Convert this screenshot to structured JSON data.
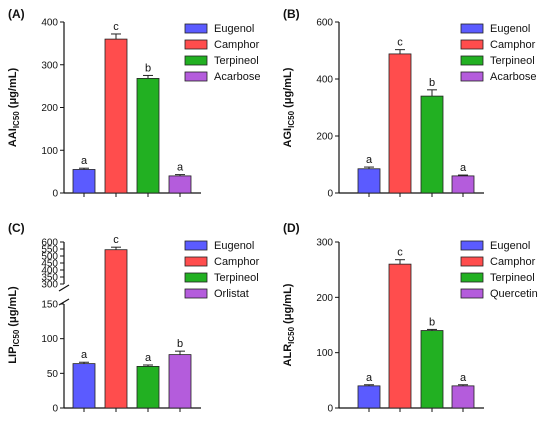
{
  "chart_data": [
    {
      "panel": "(A)",
      "type": "bar",
      "ylabel": "AAI",
      "ylabel_sub": "IC50",
      "ylabel_unit": " (μg/mL)",
      "categories": [
        "Eugenol",
        "Camphor",
        "Terpineol",
        "Acarbose"
      ],
      "values": [
        55,
        360,
        268,
        40
      ],
      "errors": [
        3,
        12,
        7,
        3
      ],
      "significance": [
        "a",
        "c",
        "b",
        "a"
      ],
      "colors": [
        "#5b5bff",
        "#ff4d4d",
        "#22b022",
        "#b45cdc"
      ],
      "ylim": [
        0,
        400
      ],
      "yticks": [
        "0",
        "100",
        "200",
        "300",
        "400"
      ],
      "legend": [
        "Eugenol",
        "Camphor",
        "Terpineol",
        "Acarbose"
      ]
    },
    {
      "panel": "(B)",
      "type": "bar",
      "ylabel": "AGI",
      "ylabel_sub": "IC50",
      "ylabel_unit": " (μg/mL)",
      "categories": [
        "Eugenol",
        "Camphor",
        "Terpineol",
        "Acarbose"
      ],
      "values": [
        85,
        488,
        340,
        60
      ],
      "errors": [
        6,
        15,
        22,
        3
      ],
      "significance": [
        "a",
        "c",
        "b",
        "a"
      ],
      "colors": [
        "#5b5bff",
        "#ff4d4d",
        "#22b022",
        "#b45cdc"
      ],
      "ylim": [
        0,
        600
      ],
      "yticks": [
        "0",
        "200",
        "400",
        "600"
      ],
      "legend": [
        "Eugenol",
        "Camphor",
        "Terpineol",
        "Acarbose"
      ]
    },
    {
      "panel": "(C)",
      "type": "bar",
      "ylabel": "LIP",
      "ylabel_sub": "IC50",
      "ylabel_unit": " (μg/mL)",
      "categories": [
        "Eugenol",
        "Camphor",
        "Terpineol",
        "Orlistat"
      ],
      "values": [
        64,
        545,
        60,
        77
      ],
      "errors": [
        2,
        18,
        2,
        5
      ],
      "significance": [
        "a",
        "c",
        "a",
        "b"
      ],
      "colors": [
        "#5b5bff",
        "#ff4d4d",
        "#22b022",
        "#b45cdc"
      ],
      "broken_axis": true,
      "lower_range": [
        0,
        150
      ],
      "upper_range": [
        300,
        600
      ],
      "yticks_lower": [
        "0",
        "50",
        "100",
        "150"
      ],
      "yticks_upper": [
        "300",
        "350",
        "400",
        "450",
        "500",
        "550",
        "600"
      ],
      "legend": [
        "Eugenol",
        "Camphor",
        "Terpineol",
        "Orlistat"
      ]
    },
    {
      "panel": "(D)",
      "type": "bar",
      "ylabel": "ALR",
      "ylabel_sub": "IC50",
      "ylabel_unit": " (μg/mL)",
      "categories": [
        "Eugenol",
        "Camphor",
        "Terpineol",
        "Quercetin"
      ],
      "values": [
        40,
        260,
        140,
        40
      ],
      "errors": [
        2,
        8,
        2,
        2
      ],
      "significance": [
        "a",
        "c",
        "b",
        "a"
      ],
      "colors": [
        "#5b5bff",
        "#ff4d4d",
        "#22b022",
        "#b45cdc"
      ],
      "ylim": [
        0,
        300
      ],
      "yticks": [
        "0",
        "100",
        "200",
        "300"
      ],
      "legend": [
        "Eugenol",
        "Camphor",
        "Terpineol",
        "Quercetin"
      ]
    }
  ]
}
